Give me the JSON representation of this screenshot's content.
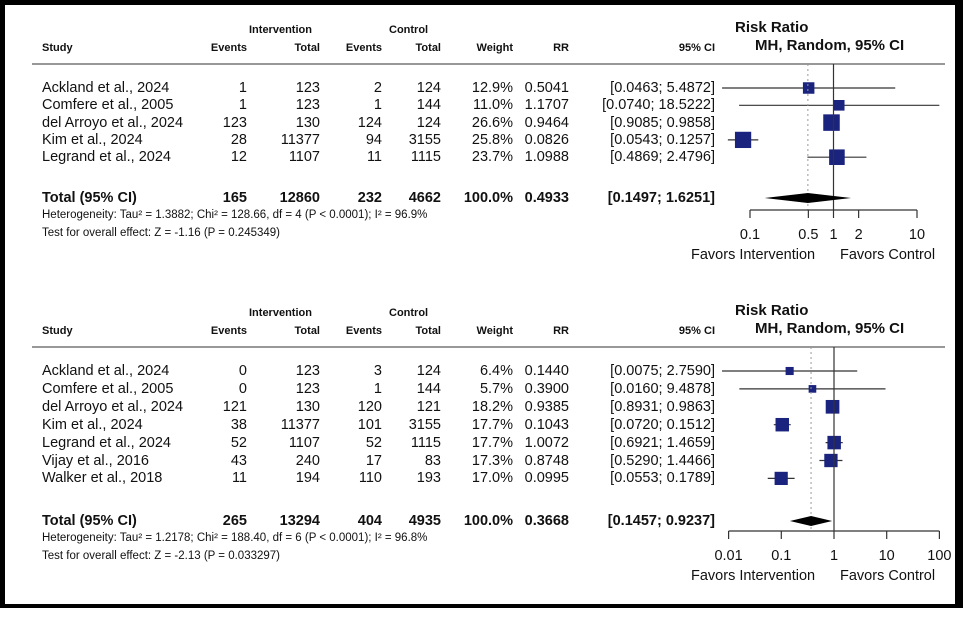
{
  "chart_data": [
    {
      "type": "forest",
      "title": "Risk Ratio",
      "subtitle": "MH, Random, 95% CI",
      "column_groups": [
        "Intervention",
        "Control"
      ],
      "columns": [
        "Study",
        "Events",
        "Total",
        "Events",
        "Total",
        "Weight",
        "RR",
        "95% CI"
      ],
      "studies": [
        {
          "study": "Ackland et al., 2024",
          "int_events": "1",
          "int_total": "123",
          "ctl_events": "2",
          "ctl_total": "124",
          "weight": "12.9%",
          "rr": "0.5041",
          "ci": "[0.0463; 5.4872]",
          "rr_value": 0.5041,
          "lo": 0.0463,
          "hi": 5.4872,
          "w": 12.9
        },
        {
          "study": "Comfere et al., 2005",
          "int_events": "1",
          "int_total": "123",
          "ctl_events": "1",
          "ctl_total": "144",
          "weight": "11.0%",
          "rr": "1.1707",
          "ci": "[0.0740; 18.5222]",
          "rr_value": 1.1707,
          "lo": 0.074,
          "hi": 18.5222,
          "w": 11.0
        },
        {
          "study": "del Arroyo et al., 2024",
          "int_events": "123",
          "int_total": "130",
          "ctl_events": "124",
          "ctl_total": "124",
          "weight": "26.6%",
          "rr": "0.9464",
          "ci": "[0.9085; 0.9858]",
          "rr_value": 0.9464,
          "lo": 0.9085,
          "hi": 0.9858,
          "w": 26.6
        },
        {
          "study": "Kim et al., 2024",
          "int_events": "28",
          "int_total": "11377",
          "ctl_events": "94",
          "ctl_total": "3155",
          "weight": "25.8%",
          "rr": "0.0826",
          "ci": "[0.0543; 0.1257]",
          "rr_value": 0.0826,
          "lo": 0.0543,
          "hi": 0.1257,
          "w": 25.8
        },
        {
          "study": "Legrand et al., 2024",
          "int_events": "12",
          "int_total": "1107",
          "ctl_events": "11",
          "ctl_total": "1115",
          "weight": "23.7%",
          "rr": "1.0988",
          "ci": "[0.4869; 2.4796]",
          "rr_value": 1.0988,
          "lo": 0.4869,
          "hi": 2.4796,
          "w": 23.7
        }
      ],
      "total": {
        "study": "Total (95% CI)",
        "int_events": "165",
        "int_total": "12860",
        "ctl_events": "232",
        "ctl_total": "4662",
        "weight": "100.0%",
        "rr": "0.4933",
        "ci": "[0.1497; 1.6251]",
        "rr_value": 0.4933,
        "lo": 0.1497,
        "hi": 1.6251
      },
      "heterogeneity": "Heterogeneity: Tau² = 1.3882; Chi² = 128.66, df = 4 (P < 0.0001); I² = 96.9%",
      "overall_effect": "Test for overall effect: Z = -1.16 (P = 0.245349)",
      "x_scale": "log",
      "xlim": [
        0.1,
        10
      ],
      "x_ticks": [
        0.1,
        0.5,
        1,
        2,
        10
      ],
      "x_tick_labels": [
        "0.1",
        "0.5",
        "1",
        "2",
        "10"
      ],
      "favors_left": "Favors Intervention",
      "favors_right": "Favors Control",
      "marker_color": "#1a237e"
    },
    {
      "type": "forest",
      "title": "Risk Ratio",
      "subtitle": "MH, Random, 95% CI",
      "column_groups": [
        "Intervention",
        "Control"
      ],
      "columns": [
        "Study",
        "Events",
        "Total",
        "Events",
        "Total",
        "Weight",
        "RR",
        "95% CI"
      ],
      "studies": [
        {
          "study": "Ackland et al., 2024",
          "int_events": "0",
          "int_total": "123",
          "ctl_events": "3",
          "ctl_total": "124",
          "weight": "6.4%",
          "rr": "0.1440",
          "ci": "[0.0075; 2.7590]",
          "rr_value": 0.144,
          "lo": 0.0075,
          "hi": 2.759,
          "w": 6.4
        },
        {
          "study": "Comfere et al., 2005",
          "int_events": "0",
          "int_total": "123",
          "ctl_events": "1",
          "ctl_total": "144",
          "weight": "5.7%",
          "rr": "0.3900",
          "ci": "[0.0160; 9.4878]",
          "rr_value": 0.39,
          "lo": 0.016,
          "hi": 9.4878,
          "w": 5.7
        },
        {
          "study": "del Arroyo et al., 2024",
          "int_events": "121",
          "int_total": "130",
          "ctl_events": "120",
          "ctl_total": "121",
          "weight": "18.2%",
          "rr": "0.9385",
          "ci": "[0.8931; 0.9863]",
          "rr_value": 0.9385,
          "lo": 0.8931,
          "hi": 0.9863,
          "w": 18.2
        },
        {
          "study": "Kim et al., 2024",
          "int_events": "38",
          "int_total": "11377",
          "ctl_events": "101",
          "ctl_total": "3155",
          "weight": "17.7%",
          "rr": "0.1043",
          "ci": "[0.0720; 0.1512]",
          "rr_value": 0.1043,
          "lo": 0.072,
          "hi": 0.1512,
          "w": 17.7
        },
        {
          "study": "Legrand et al., 2024",
          "int_events": "52",
          "int_total": "1107",
          "ctl_events": "52",
          "ctl_total": "1115",
          "weight": "17.7%",
          "rr": "1.0072",
          "ci": "[0.6921; 1.4659]",
          "rr_value": 1.0072,
          "lo": 0.6921,
          "hi": 1.4659,
          "w": 17.7
        },
        {
          "study": "Vijay et al., 2016",
          "int_events": "43",
          "int_total": "240",
          "ctl_events": "17",
          "ctl_total": "83",
          "weight": "17.3%",
          "rr": "0.8748",
          "ci": "[0.5290; 1.4466]",
          "rr_value": 0.8748,
          "lo": 0.529,
          "hi": 1.4466,
          "w": 17.3
        },
        {
          "study": "Walker et al., 2018",
          "int_events": "11",
          "int_total": "194",
          "ctl_events": "110",
          "ctl_total": "193",
          "weight": "17.0%",
          "rr": "0.0995",
          "ci": "[0.0553; 0.1789]",
          "rr_value": 0.0995,
          "lo": 0.0553,
          "hi": 0.1789,
          "w": 17.0
        }
      ],
      "total": {
        "study": "Total (95% CI)",
        "int_events": "265",
        "int_total": "13294",
        "ctl_events": "404",
        "ctl_total": "4935",
        "weight": "100.0%",
        "rr": "0.3668",
        "ci": "[0.1457; 0.9237]",
        "rr_value": 0.3668,
        "lo": 0.1457,
        "hi": 0.9237
      },
      "heterogeneity": "Heterogeneity: Tau² = 1.2178; Chi² = 188.40, df = 6 (P < 0.0001); I² = 96.8%",
      "overall_effect": "Test for overall effect: Z = -2.13 (P = 0.033297)",
      "x_scale": "log",
      "xlim": [
        0.01,
        100
      ],
      "x_ticks": [
        0.01,
        0.1,
        1,
        10,
        100
      ],
      "x_tick_labels": [
        "0.01",
        "0.1",
        "1",
        "10",
        "100"
      ],
      "favors_left": "Favors Intervention",
      "favors_right": "Favors Control",
      "marker_color": "#1a237e"
    }
  ]
}
